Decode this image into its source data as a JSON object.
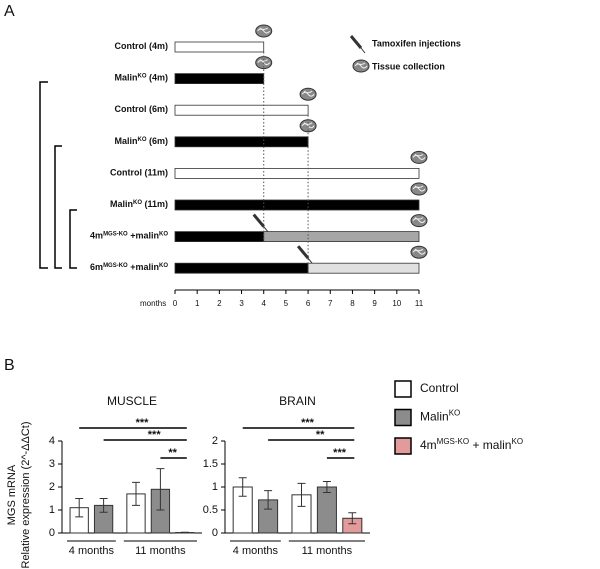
{
  "chart_data": [
    {
      "type": "timeline",
      "panel": "A",
      "xlim": [
        0,
        11
      ],
      "xticks": [
        0,
        1,
        2,
        3,
        4,
        5,
        6,
        7,
        8,
        9,
        10,
        11
      ],
      "xlabel": "months",
      "legend": [
        "Tamoxifen injections",
        "Tissue collection"
      ],
      "rows": [
        {
          "label": [
            "Control (4m)"
          ],
          "segments": [
            {
              "start": 0,
              "end": 4,
              "color": "#ffffff"
            }
          ],
          "collection": 4
        },
        {
          "label": [
            "Malin",
            "KO",
            " (4m)"
          ],
          "segments": [
            {
              "start": 0,
              "end": 4,
              "color": "#000000"
            }
          ],
          "collection": 4
        },
        {
          "label": [
            "Control (6m)"
          ],
          "segments": [
            {
              "start": 0,
              "end": 6,
              "color": "#ffffff"
            }
          ],
          "collection": 6
        },
        {
          "label": [
            "Malin",
            "KO",
            " (6m)"
          ],
          "segments": [
            {
              "start": 0,
              "end": 6,
              "color": "#000000"
            }
          ],
          "collection": 6
        },
        {
          "label": [
            "Control (11m)"
          ],
          "segments": [
            {
              "start": 0,
              "end": 11,
              "color": "#ffffff"
            }
          ],
          "collection": 11
        },
        {
          "label": [
            "Malin",
            "KO",
            " (11m)"
          ],
          "segments": [
            {
              "start": 0,
              "end": 11,
              "color": "#000000"
            }
          ],
          "collection": 11
        },
        {
          "label": [
            "4m",
            "MGS-KO",
            " +malin",
            "KO"
          ],
          "segments": [
            {
              "start": 0,
              "end": 4,
              "color": "#000000"
            },
            {
              "start": 4,
              "end": 11,
              "color": "#a6a6a6"
            }
          ],
          "injection": 4,
          "collection": 11
        },
        {
          "label": [
            "6m",
            "MGS-KO",
            " +malin",
            "KO"
          ],
          "segments": [
            {
              "start": 0,
              "end": 6,
              "color": "#000000"
            },
            {
              "start": 6,
              "end": 11,
              "color": "#e0e0e0"
            }
          ],
          "injection": 6,
          "collection": 11
        }
      ]
    },
    {
      "type": "bar",
      "panel": "B",
      "title": "MUSCLE",
      "ylabel": [
        "MGS mRNA",
        "Relative expression (2^-ΔΔCt)"
      ],
      "ylim": [
        0,
        4
      ],
      "yticks": [
        0,
        1,
        2,
        3,
        4
      ],
      "values": [
        1.1,
        1.2,
        1.7,
        1.9,
        0.02
      ],
      "errors": [
        0.4,
        0.3,
        0.5,
        0.9,
        0.01
      ],
      "colors": [
        "#ffffff",
        "#8c8c8c",
        "#ffffff",
        "#8c8c8c",
        "#e39a9a"
      ],
      "groups": [
        {
          "label": "4 months",
          "size": 2
        },
        {
          "label": "11 months",
          "size": 3
        }
      ],
      "significance": [
        {
          "from": 0,
          "to": 4,
          "label": "***"
        },
        {
          "from": 1,
          "to": 4,
          "label": "***"
        },
        {
          "from": 3,
          "to": 4,
          "label": "**"
        }
      ]
    },
    {
      "type": "bar",
      "title": "BRAIN",
      "ylim": [
        0,
        2
      ],
      "yticks": [
        0,
        0.5,
        1,
        1.5,
        2
      ],
      "values": [
        1.0,
        0.72,
        0.83,
        1.0,
        0.32
      ],
      "errors": [
        0.2,
        0.2,
        0.25,
        0.12,
        0.12
      ],
      "colors": [
        "#ffffff",
        "#8c8c8c",
        "#ffffff",
        "#8c8c8c",
        "#e39a9a"
      ],
      "groups": [
        {
          "label": "4 months",
          "size": 2
        },
        {
          "label": "11 months",
          "size": 3
        }
      ],
      "significance": [
        {
          "from": 0,
          "to": 4,
          "label": "***"
        },
        {
          "from": 1,
          "to": 4,
          "label": "**"
        },
        {
          "from": 3,
          "to": 4,
          "label": "***"
        }
      ],
      "legend": [
        {
          "label": [
            "Control"
          ],
          "color": "#ffffff"
        },
        {
          "label": [
            "Malin",
            "KO"
          ],
          "color": "#8c8c8c"
        },
        {
          "label": [
            "4m",
            "MGS-KO",
            " + malin",
            "KO"
          ],
          "color": "#e39a9a"
        }
      ]
    }
  ]
}
